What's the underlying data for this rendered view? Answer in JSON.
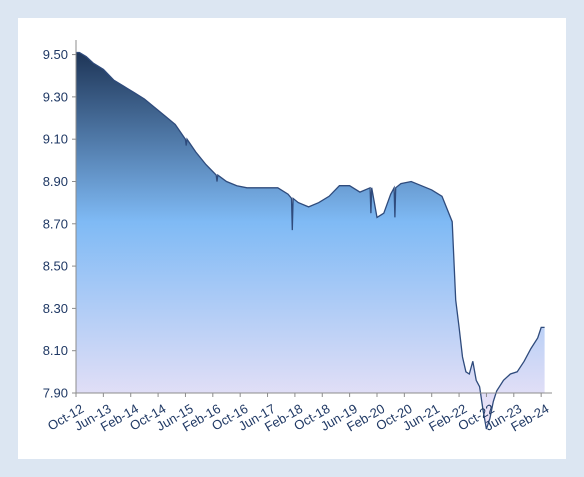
{
  "chart_data": {
    "type": "area",
    "title": "",
    "xlabel": "",
    "ylabel": "",
    "ylim": [
      7.9,
      9.55
    ],
    "grid": false,
    "legend": "none",
    "y_ticks": [
      "9.50",
      "9.30",
      "9.10",
      "8.90",
      "8.70",
      "8.50",
      "8.30",
      "8.10",
      "7.90"
    ],
    "y_tick_values": [
      9.5,
      9.3,
      9.1,
      8.9,
      8.7,
      8.5,
      8.3,
      8.1,
      7.9
    ],
    "x_ticks": [
      "Oct-12",
      "Jun-13",
      "Feb-14",
      "Oct-14",
      "Jun-15",
      "Feb-16",
      "Oct-16",
      "Jun-17",
      "Feb-18",
      "Oct-18",
      "Jun-19",
      "Feb-20",
      "Oct-20",
      "Jun-21",
      "Feb-22",
      "Oct-22",
      "Jun-23",
      "Feb-24"
    ],
    "x_tick_values": [
      "2012-10",
      "2013-06",
      "2014-02",
      "2014-10",
      "2015-06",
      "2016-02",
      "2016-10",
      "2017-06",
      "2018-02",
      "2018-10",
      "2019-06",
      "2020-02",
      "2020-10",
      "2021-06",
      "2022-02",
      "2022-10",
      "2023-06",
      "2024-02"
    ],
    "xlim": [
      "2012-10",
      "2024-04"
    ],
    "colors": {
      "line": "#2f4b7c",
      "fill_top": "#1e3557",
      "fill_mid": "#7fbaf5",
      "fill_bottom": "#f5e6f7",
      "axis": "#8c8c8c",
      "text": "#1f3864",
      "background": "#dce6f2"
    },
    "series": [
      {
        "x": [
          "2012-10",
          "2012-11",
          "2013-01",
          "2013-03",
          "2013-06",
          "2013-09",
          "2013-12",
          "2014-03",
          "2014-06",
          "2014-09",
          "2014-12",
          "2015-03",
          "2015-06",
          "2015-06",
          "2015-06",
          "2015-09",
          "2015-12",
          "2016-03",
          "2016-03",
          "2016-03",
          "2016-06",
          "2016-09",
          "2016-12",
          "2017-03",
          "2017-06",
          "2017-09",
          "2017-12",
          "2018-01",
          "2018-01",
          "2018-01",
          "2018-03",
          "2018-06",
          "2018-09",
          "2018-12",
          "2019-03",
          "2019-06",
          "2019-09",
          "2019-12",
          "2019-12",
          "2019-12",
          "2020-02",
          "2020-04",
          "2020-06",
          "2020-07",
          "2020-07",
          "2020-07",
          "2020-09",
          "2020-12",
          "2021-03",
          "2021-06",
          "2021-09",
          "2021-12",
          "2022-01",
          "2022-02",
          "2022-03",
          "2022-04",
          "2022-05",
          "2022-06",
          "2022-07",
          "2022-08",
          "2022-09",
          "2022-10",
          "2022-11",
          "2022-12",
          "2023-01",
          "2023-03",
          "2023-05",
          "2023-07",
          "2023-09",
          "2023-11",
          "2024-01",
          "2024-02",
          "2024-03"
        ],
        "y": [
          9.51,
          9.51,
          9.49,
          9.46,
          9.43,
          9.38,
          9.35,
          9.32,
          9.29,
          9.25,
          9.21,
          9.17,
          9.1,
          9.07,
          9.1,
          9.04,
          8.98,
          8.93,
          8.9,
          8.93,
          8.9,
          8.88,
          8.87,
          8.87,
          8.87,
          8.87,
          8.84,
          8.82,
          8.67,
          8.82,
          8.8,
          8.78,
          8.8,
          8.83,
          8.88,
          8.88,
          8.85,
          8.87,
          8.75,
          8.87,
          8.73,
          8.75,
          8.84,
          8.87,
          8.73,
          8.87,
          8.89,
          8.9,
          8.88,
          8.86,
          8.83,
          8.71,
          8.34,
          8.21,
          8.07,
          8.0,
          7.99,
          8.05,
          7.96,
          7.93,
          7.82,
          7.73,
          7.78,
          7.86,
          7.91,
          7.96,
          7.99,
          8.0,
          8.05,
          8.11,
          8.16,
          8.21,
          8.21
        ]
      }
    ]
  }
}
